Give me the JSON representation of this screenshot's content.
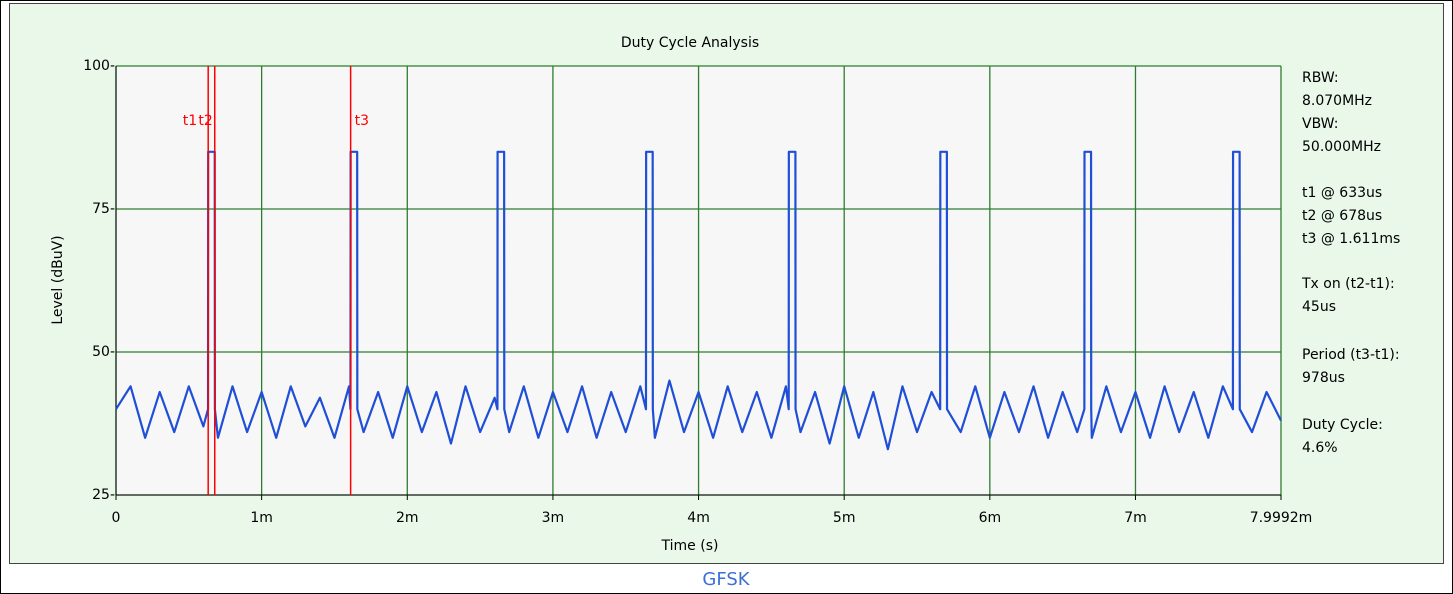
{
  "chart_data": {
    "type": "line",
    "title": "Duty Cycle Analysis",
    "x_label": "Time (s)",
    "y_label": "Level (dBuV)",
    "color": "#1f4fd6",
    "grid": true,
    "xlim": [
      0,
      0.0079992
    ],
    "ylim": [
      25,
      100
    ],
    "xticks": [
      0,
      {
        "value": 0.001,
        "label": "1m"
      },
      {
        "value": 0.002,
        "label": "2m"
      },
      {
        "value": 0.003,
        "label": "3m"
      },
      {
        "value": 0.004,
        "label": "4m"
      },
      {
        "value": 0.005,
        "label": "5m"
      },
      {
        "value": 0.006,
        "label": "6m"
      },
      {
        "value": 0.007,
        "label": "7m"
      },
      {
        "value": 0.0079992,
        "label": "7.9992m"
      }
    ],
    "yticks": [
      {
        "value": 25,
        "label": "25-"
      },
      {
        "value": 50,
        "label": "50-"
      },
      {
        "value": 75,
        "label": "75-"
      },
      {
        "value": 100,
        "label": "100-"
      }
    ],
    "x": [
      0,
      0.0001,
      0.0002,
      0.0003,
      0.0004,
      0.0005,
      0.0006,
      0.000632,
      0.000633,
      0.000678,
      0.000679,
      0.0007,
      0.0008,
      0.0009,
      0.001,
      0.0011,
      0.0012,
      0.0013,
      0.0014,
      0.0015,
      0.0016,
      0.00161,
      0.001611,
      0.001656,
      0.001657,
      0.0017,
      0.0018,
      0.0019,
      0.002,
      0.0021,
      0.0022,
      0.0023,
      0.0024,
      0.0025,
      0.0026,
      0.002619,
      0.00262,
      0.002665,
      0.002666,
      0.0027,
      0.0028,
      0.0029,
      0.003,
      0.0031,
      0.0032,
      0.0033,
      0.0034,
      0.0035,
      0.0036,
      0.003639,
      0.00364,
      0.003685,
      0.003686,
      0.0037,
      0.0038,
      0.0039,
      0.004,
      0.0041,
      0.0042,
      0.0043,
      0.0044,
      0.0045,
      0.0046,
      0.004619,
      0.00462,
      0.004665,
      0.004666,
      0.0047,
      0.0048,
      0.0049,
      0.005,
      0.0051,
      0.0052,
      0.0053,
      0.0054,
      0.0055,
      0.0056,
      0.005659,
      0.00566,
      0.005705,
      0.005706,
      0.0058,
      0.0059,
      0.006,
      0.0061,
      0.0062,
      0.0063,
      0.0064,
      0.0065,
      0.0066,
      0.006649,
      0.00665,
      0.006695,
      0.006696,
      0.0067,
      0.0068,
      0.0069,
      0.007,
      0.0071,
      0.0072,
      0.0073,
      0.0074,
      0.0075,
      0.0076,
      0.007669,
      0.00767,
      0.007715,
      0.007716,
      0.0078,
      0.0079,
      0.0079992
    ],
    "values": [
      40,
      44,
      35,
      43,
      36,
      44,
      37,
      40,
      85,
      85,
      40,
      35,
      44,
      36,
      43,
      35,
      44,
      37,
      42,
      35,
      44,
      40,
      85,
      85,
      40,
      36,
      43,
      35,
      44,
      36,
      43,
      34,
      44,
      36,
      42,
      40,
      85,
      85,
      40,
      36,
      44,
      35,
      43,
      36,
      44,
      35,
      43,
      36,
      44,
      40,
      85,
      85,
      40,
      35,
      45,
      36,
      43,
      35,
      44,
      36,
      43,
      35,
      44,
      40,
      85,
      85,
      40,
      36,
      43,
      34,
      44,
      35,
      43,
      33,
      44,
      36,
      43,
      40,
      85,
      85,
      40,
      36,
      44,
      35,
      43,
      36,
      44,
      35,
      43,
      36,
      40,
      85,
      85,
      40,
      35,
      44,
      36,
      43,
      35,
      44,
      36,
      43,
      35,
      44,
      40,
      85,
      85,
      40,
      36,
      43,
      38
    ],
    "marker_color": "#ff0000",
    "markers": [
      {
        "label": "t1",
        "x": 0.000633
      },
      {
        "label": "t2",
        "x": 0.000678
      },
      {
        "label": "t3",
        "x": 0.001611
      }
    ],
    "info_panel": [
      [
        "RBW:",
        "8.070MHz",
        "VBW:",
        "50.000MHz"
      ],
      [
        "t1 @ 633us",
        "t2 @ 678us",
        "t3 @ 1.611ms"
      ],
      [
        "Tx on (t2-t1):",
        "45us"
      ],
      [
        "Period (t3-t1):",
        "978us"
      ],
      [
        "Duty Cycle:",
        "4.6%"
      ]
    ]
  },
  "footer": "GFSK"
}
